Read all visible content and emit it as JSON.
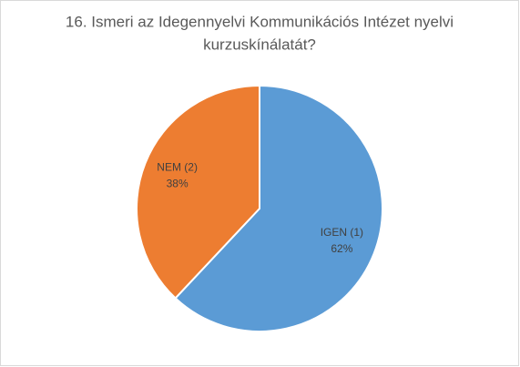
{
  "chart_data": {
    "type": "pie",
    "title": [
      "16. Ismeri az Idegennyelvi Kommunikációs Intézet nyelvi",
      "kurzuskínálatát?"
    ],
    "categories": [
      "IGEN (1)",
      "NEM (2)"
    ],
    "values": [
      62,
      38
    ],
    "value_labels": [
      "62%",
      "38%"
    ],
    "colors": [
      "#5b9bd5",
      "#ed7d31"
    ]
  }
}
